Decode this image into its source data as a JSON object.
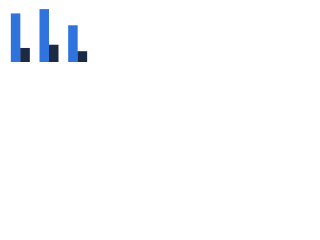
{
  "chart_data": {
    "type": "bar",
    "categories": [
      null,
      null,
      null
    ],
    "series": [
      {
        "color": "#2f74de",
        "values": [
          45,
          49,
          34
        ]
      },
      {
        "color": "#1b2b45",
        "values": [
          13,
          16,
          10
        ]
      }
    ],
    "ylim": [
      0,
      50
    ]
  }
}
